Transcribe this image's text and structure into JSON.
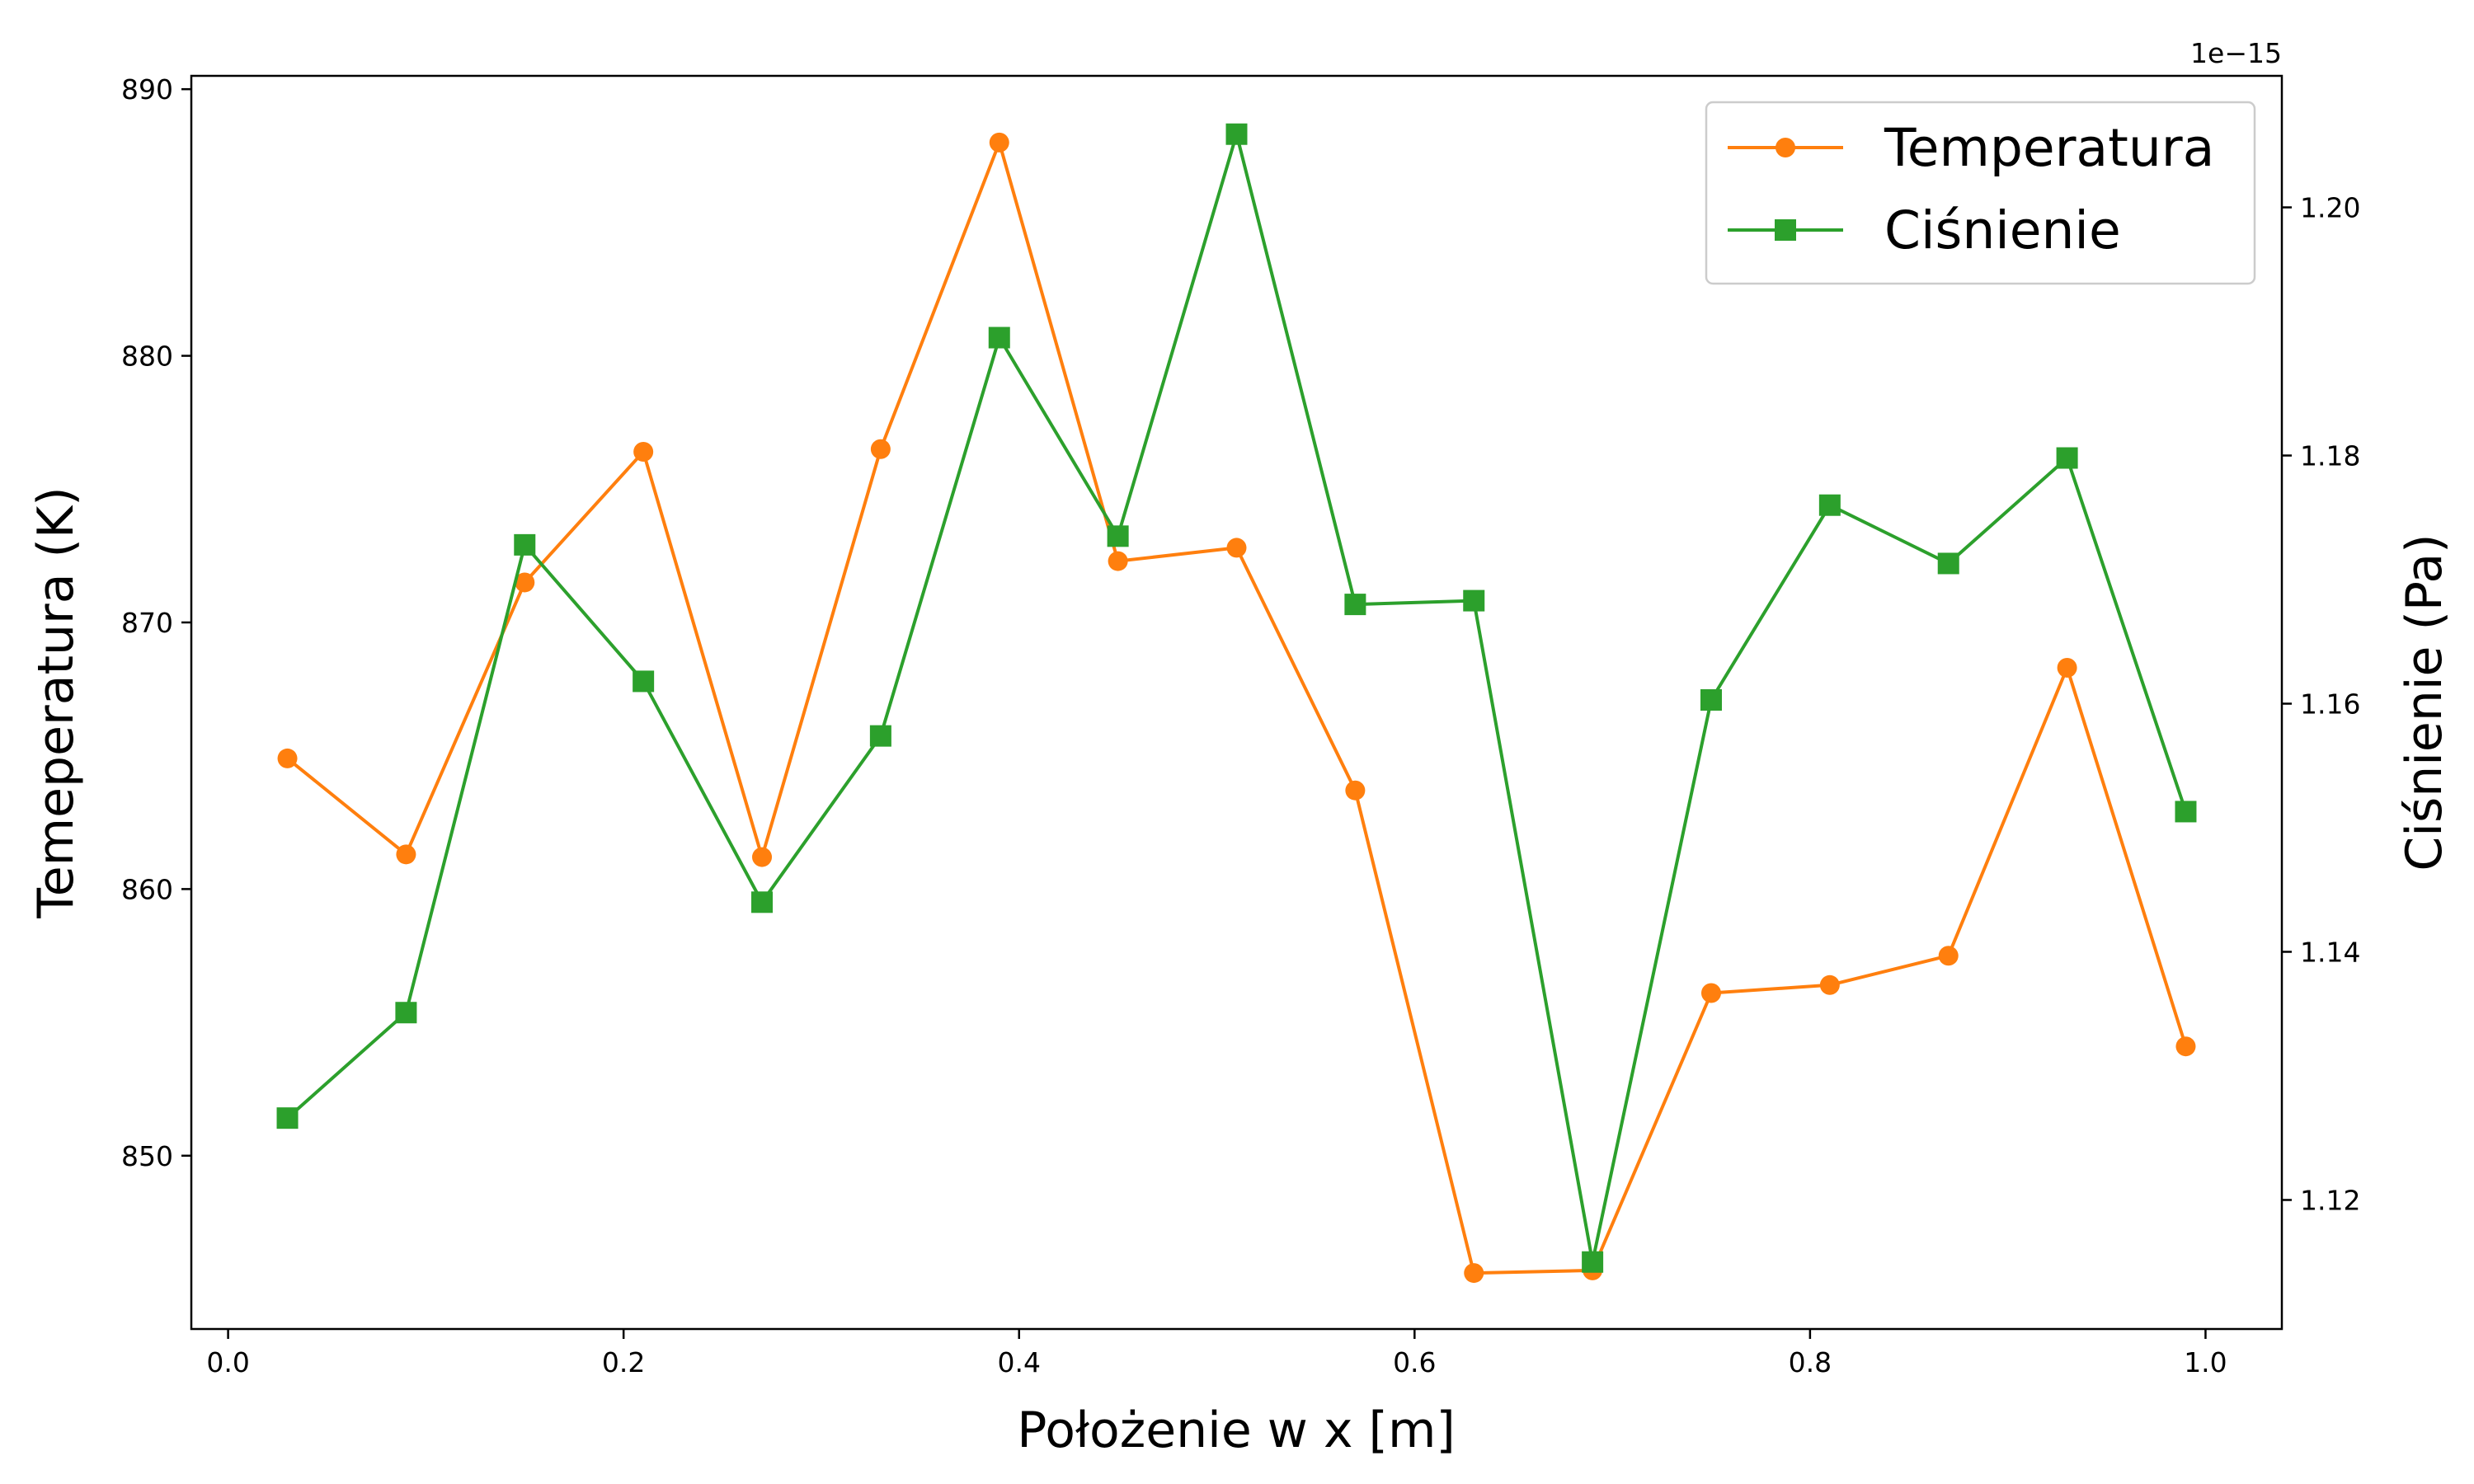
{
  "chart_data": {
    "type": "line",
    "xlabel": "Położenie w x [m]",
    "ylabel_left": "Temeperatura (K)",
    "ylabel_right": "Ciśnienie (Pa)",
    "right_axis_offset_text": "1e−15",
    "xlim": [
      -0.0186,
      1.0386
    ],
    "ylim_left": [
      843.5,
      890.5
    ],
    "ylim_right": [
      1.1096,
      1.2106
    ],
    "x_ticks": [
      0.0,
      0.2,
      0.4,
      0.6,
      0.8,
      1.0
    ],
    "x_tick_labels": [
      "0.0",
      "0.2",
      "0.4",
      "0.6",
      "0.8",
      "1.0"
    ],
    "y_left_ticks": [
      850,
      860,
      870,
      880,
      890
    ],
    "y_left_tick_labels": [
      "850",
      "860",
      "870",
      "880",
      "890"
    ],
    "y_right_ticks": [
      1.12,
      1.14,
      1.16,
      1.18,
      1.2
    ],
    "y_right_tick_labels": [
      "1.12",
      "1.14",
      "1.16",
      "1.18",
      "1.20"
    ],
    "x": [
      0.03,
      0.09,
      0.15,
      0.21,
      0.27,
      0.33,
      0.39,
      0.45,
      0.51,
      0.57,
      0.63,
      0.69,
      0.75,
      0.81,
      0.87,
      0.93,
      0.99
    ],
    "series": [
      {
        "name": "Temperatura",
        "axis": "left",
        "color": "#ff7f0e",
        "marker": "circle",
        "values": [
          864.9,
          861.3,
          871.5,
          876.4,
          861.2,
          876.5,
          888.0,
          872.3,
          872.8,
          863.7,
          845.6,
          845.7,
          856.1,
          856.4,
          857.5,
          868.3,
          854.1
        ]
      },
      {
        "name": "Ciśnienie",
        "axis": "right",
        "color": "#2ca02c",
        "marker": "square",
        "values": [
          1.1266,
          1.1351,
          1.1728,
          1.1618,
          1.144,
          1.1574,
          1.1895,
          1.1735,
          1.2059,
          1.168,
          1.1683,
          1.115,
          1.1603,
          1.176,
          1.1713,
          1.1798,
          1.1513
        ]
      }
    ],
    "legend_position": "top-right",
    "grid": false
  }
}
